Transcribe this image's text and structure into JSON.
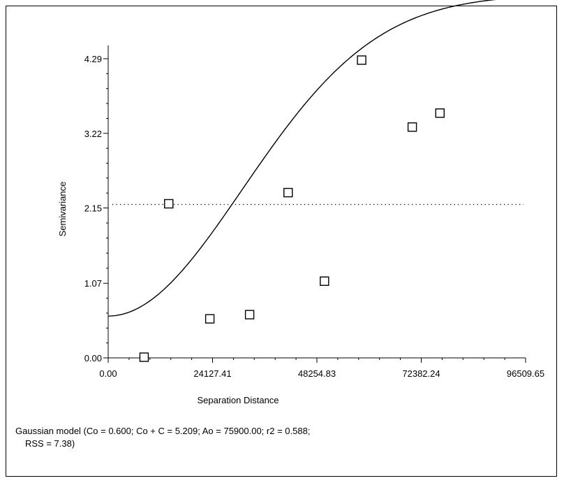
{
  "chart_data": {
    "type": "scatter",
    "xlabel": "Separation Distance",
    "ylabel": "Semivariance",
    "xlim": [
      0.0,
      96509.65
    ],
    "ylim": [
      0.0,
      4.29
    ],
    "x_ticks": [
      "0.00",
      "24127.41",
      "48254.83",
      "72382.24",
      "96509.65"
    ],
    "y_ticks": [
      "0.00",
      "1.07",
      "2.15",
      "3.22",
      "4.29"
    ],
    "grid": false,
    "points": [
      {
        "x": 8300,
        "y": 0.01
      },
      {
        "x": 14000,
        "y": 2.21
      },
      {
        "x": 23500,
        "y": 0.56
      },
      {
        "x": 32700,
        "y": 0.62
      },
      {
        "x": 41600,
        "y": 2.37
      },
      {
        "x": 50000,
        "y": 1.1
      },
      {
        "x": 58600,
        "y": 4.27
      },
      {
        "x": 70300,
        "y": 3.31
      },
      {
        "x": 76700,
        "y": 3.51
      }
    ],
    "sill_line": {
      "y": 2.2,
      "style": "dotted"
    },
    "model_curve": {
      "type": "gaussian",
      "nugget": 0.6,
      "sill": 5.209,
      "range": 75900.0
    },
    "caption_line1": "Gaussian model (Co = 0.600; Co + C = 5.209; Ao = 75900.00; r2 = 0.588;",
    "caption_line2": "RSS = 7.38)"
  }
}
